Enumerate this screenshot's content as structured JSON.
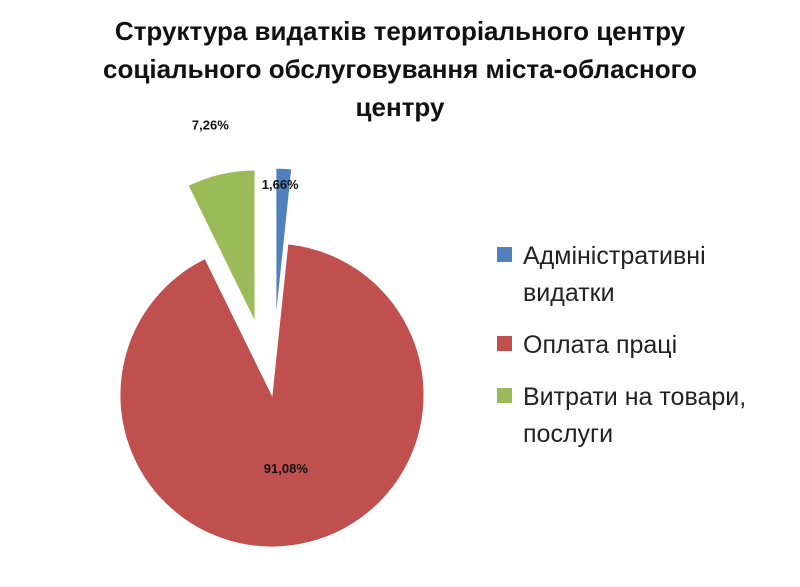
{
  "chart_data": {
    "type": "pie",
    "title_lines": [
      "Структура видатків територіального центру",
      "соціального обслуговування міста-обласного",
      "центру"
    ],
    "categories": [
      "Адміністративні видатки",
      "Оплата праці",
      "Витрати на товари, послуги"
    ],
    "values": [
      1.66,
      91.08,
      7.26
    ],
    "data_labels": [
      "1,66%",
      "91,08%",
      "7,26%"
    ],
    "colors": [
      "#4f81bd",
      "#c0504d",
      "#9bbb59"
    ],
    "exploded": [
      true,
      false,
      true
    ],
    "legend_position": "right",
    "legend": [
      {
        "lines": [
          "Адміністративні",
          "видатки"
        ],
        "color": "#4f81bd"
      },
      {
        "lines": [
          "Оплата праці"
        ],
        "color": "#c0504d"
      },
      {
        "lines": [
          "Витрати на товари,",
          "послуги"
        ],
        "color": "#9bbb59"
      }
    ]
  }
}
